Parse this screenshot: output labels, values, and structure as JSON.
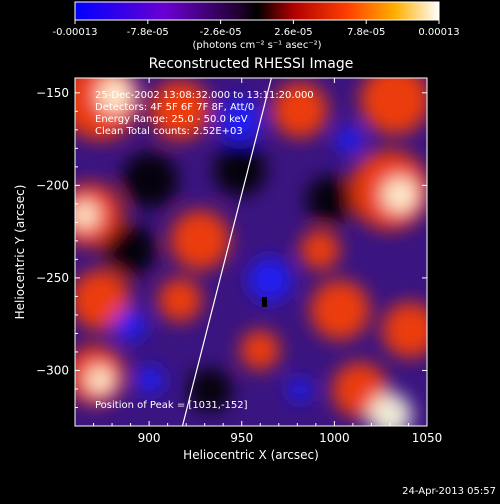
{
  "colorbar": {
    "tick_labels": [
      "-0.00013",
      "-7.8e-05",
      "-2.6e-05",
      "2.6e-05",
      "7.8e-05",
      "0.00013"
    ],
    "tick_values": [
      -0.00013,
      -7.8e-05,
      -2.6e-05,
      2.6e-05,
      7.8e-05,
      0.00013
    ],
    "range": [
      -0.00013,
      0.00013
    ],
    "units_label": "(photons cm⁻² s⁻¹ asec⁻²)",
    "colors": [
      "#0000ff",
      "#7a00c8",
      "#000000",
      "#b00000",
      "#ff3000",
      "#ff9000",
      "#ffff80",
      "#ffffff"
    ]
  },
  "chart_data": {
    "type": "heatmap",
    "title": "Reconstructed RHESSI Image",
    "xlabel": "Heliocentric X (arcsec)",
    "ylabel": "Heliocentric Y (arcsec)",
    "xlim": [
      860,
      1050
    ],
    "ylim": [
      -330,
      -142
    ],
    "x_ticks": [
      900,
      950,
      1000,
      1050
    ],
    "y_ticks": [
      -150,
      -200,
      -250,
      -300
    ],
    "annotations": [
      "25-Dec-2002 13:08:32.000 to 13:11:20.000",
      "Detectors: 4F 5F 6F 7F 8F, Att/0",
      "Energy Range: 25.0 - 50.0 keV",
      "Clean      Total counts: 2.52E+03"
    ],
    "peak_label": "Position of Peak = [1031,-152]",
    "peak": [
      1031,
      -152
    ],
    "limb_line": [
      [
        918,
        -330
      ],
      [
        966,
        -142
      ]
    ],
    "colors": {
      "positive_high": "#ffffe0",
      "positive": "#ff4000",
      "neutral": "#000000",
      "negative": "#7040c0",
      "negative_low": "#2020ff"
    }
  },
  "footer": {
    "date": "24-Apr-2013 05:57"
  }
}
